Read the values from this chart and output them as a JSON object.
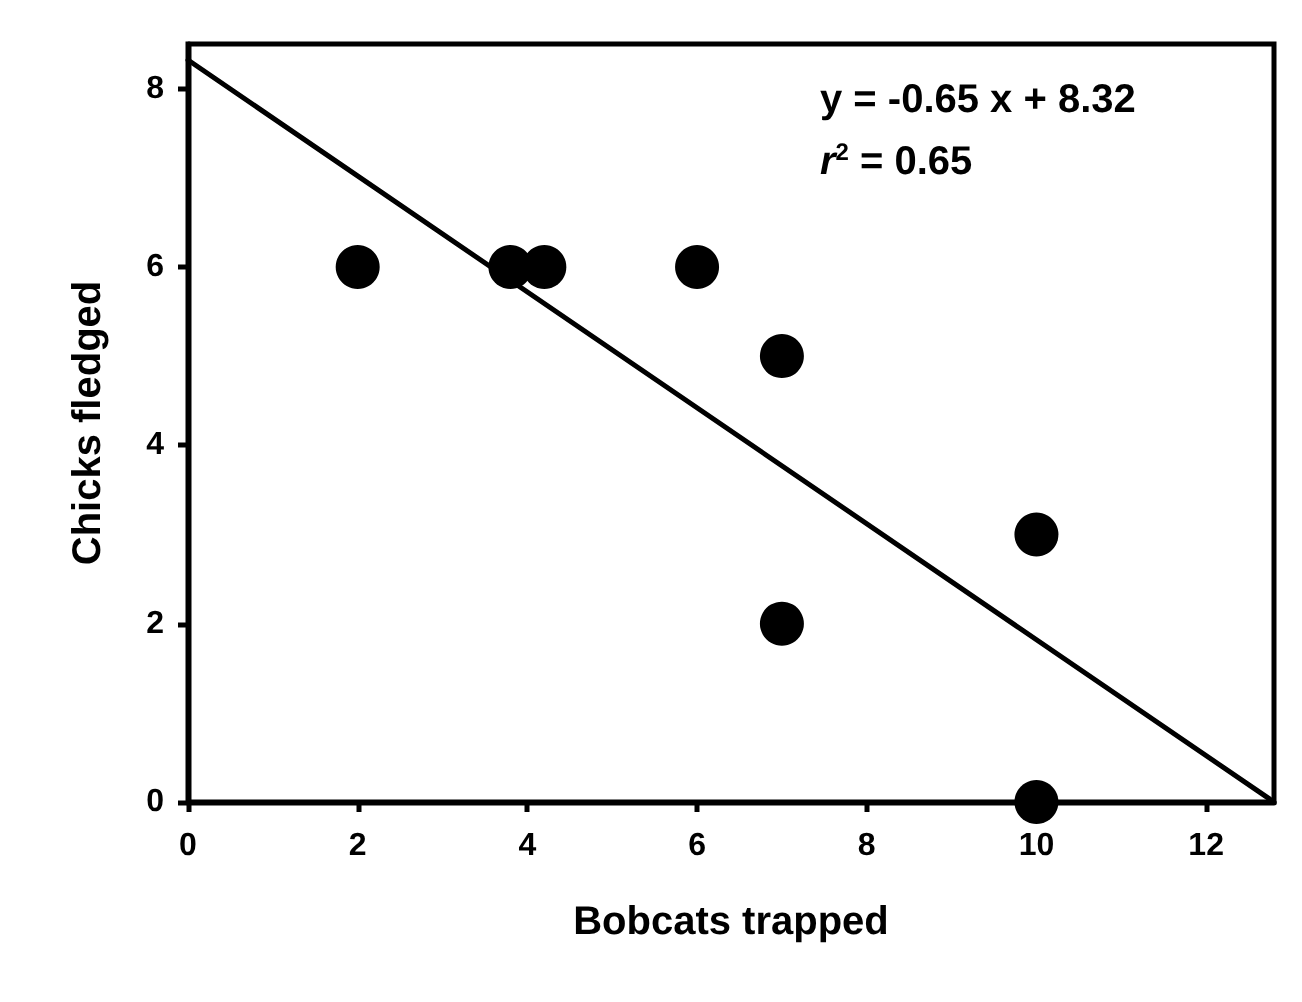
{
  "chart_data": {
    "type": "scatter",
    "xlabel": "Bobcats trapped",
    "ylabel": "Chicks fledged",
    "annotations": [
      "y = -0.65 x + 8.32",
      "r$^{2}$ = 0.65"
    ],
    "xlim": [
      0,
      12.8
    ],
    "xticks": [
      0,
      2,
      4,
      6,
      8,
      10,
      12
    ],
    "ylim": [
      0,
      8.5
    ],
    "yticks": [
      0,
      2,
      4,
      6,
      8
    ],
    "grid": false,
    "marker": "circle",
    "series": [
      {
        "color": "#000000",
        "x": [
          2,
          3.8,
          4.2,
          6,
          7,
          7,
          10,
          10
        ],
        "values": [
          6,
          6,
          6,
          6,
          5,
          2,
          3,
          0
        ]
      },
      {
        "type": "line",
        "color": "#000000",
        "line_style": "solid",
        "marker": "none",
        "x": [
          0,
          12.8
        ],
        "values": [
          8.32,
          0
        ]
      }
    ]
  }
}
